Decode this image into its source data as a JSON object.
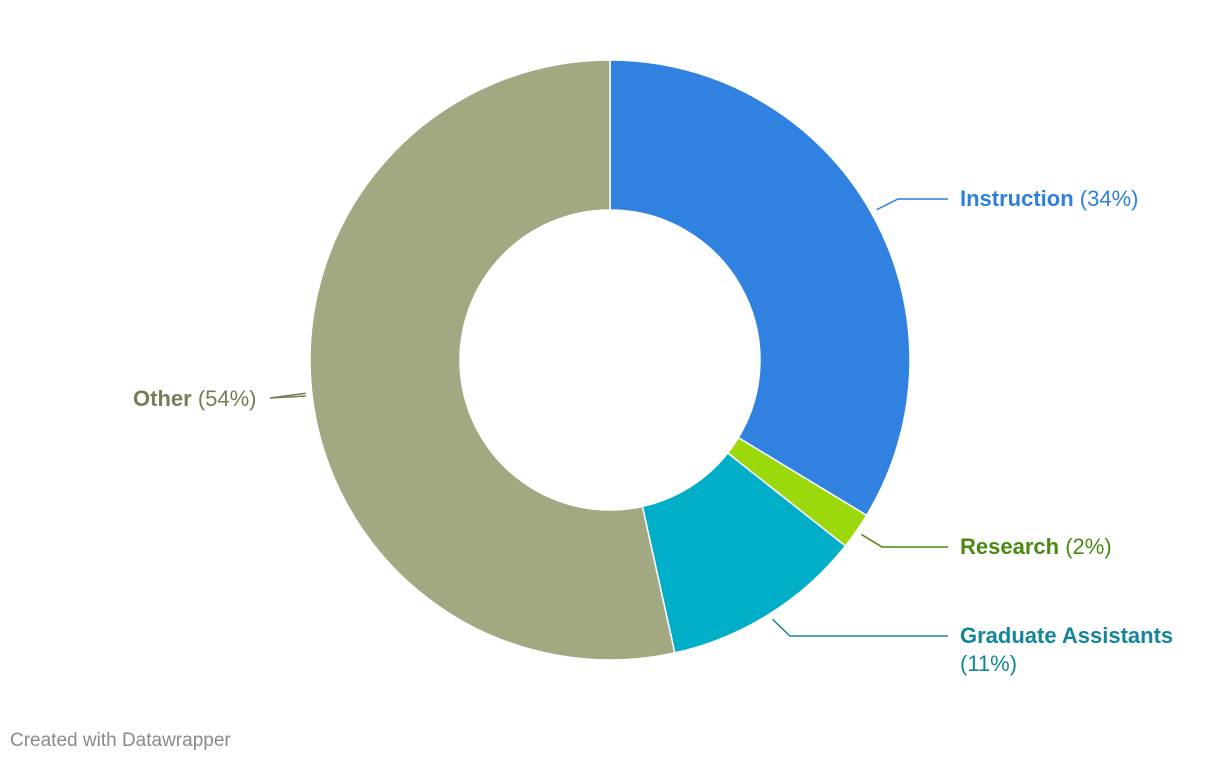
{
  "chart_data": {
    "type": "pie",
    "variant": "donut",
    "slices": [
      {
        "name": "Instruction",
        "pct_label": "(34%)",
        "value": 34,
        "color": "#3182e0",
        "text_color": "#2f7fdc"
      },
      {
        "name": "Research",
        "pct_label": "(2%)",
        "value": 2,
        "color": "#9bd80c",
        "text_color": "#4a8a10"
      },
      {
        "name": "Graduate Assistants",
        "pct_label": "(11%)",
        "value": 11,
        "color": "#00aec7",
        "text_color": "#14869a"
      },
      {
        "name": "Other",
        "pct_label": "(54%)",
        "value": 54,
        "color": "#a2a882",
        "text_color": "#787d58"
      }
    ],
    "legend": "direct labels"
  },
  "footer": {
    "credit": "Created with Datawrapper"
  }
}
